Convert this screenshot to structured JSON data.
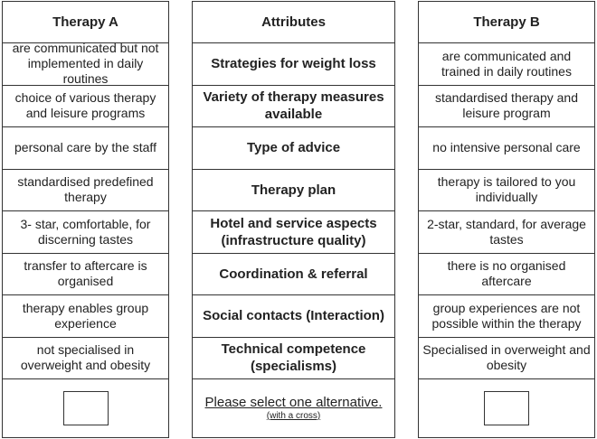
{
  "therapy_a": {
    "header": "Therapy A",
    "cells": [
      "are communicated but not implemented in daily routines",
      "choice of various therapy and  leisure programs",
      "personal care by the staff",
      "standardised predefined therapy",
      "3- star, comfortable, for discerning tastes",
      "transfer to aftercare is organised",
      "therapy enables group experience",
      "not specialised in overweight  and obesity"
    ]
  },
  "attributes": {
    "header": "Attributes",
    "cells": [
      "Strategies for weight loss",
      "Variety of therapy measures available",
      "Type of advice",
      "Therapy plan",
      "Hotel and service aspects (infrastructure quality)",
      "Coordination & referral",
      "Social contacts (Interaction)",
      "Technical competence (specialisms)"
    ],
    "instruction": "Please select one alternative.",
    "instruction_sub": "(with a cross)"
  },
  "therapy_b": {
    "header": "Therapy B",
    "cells": [
      "are communicated and trained in daily routines",
      "standardised therapy and leisure  program",
      "no intensive personal care",
      "therapy is tailored to you individually",
      "2-star, standard, for average tastes",
      "there is no organised aftercare",
      "group experiences are not possible  within the therapy",
      "Specialised in overweight and obesity"
    ]
  }
}
